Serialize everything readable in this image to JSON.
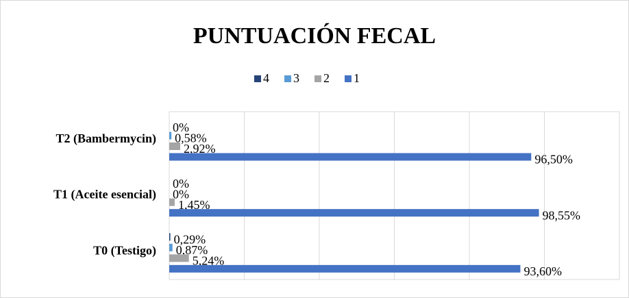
{
  "chart_data": {
    "type": "hbar",
    "title": "PUNTUACIÓN FECAL",
    "categories": [
      "T0 (Testigo)",
      "T1 (Aceite esencial)",
      "T2 (Bambermycin)"
    ],
    "series": [
      {
        "name": "4",
        "color": "#264478",
        "values": [
          0.29,
          0,
          0
        ],
        "value_labels": [
          "0,29%",
          "0%",
          "0%"
        ]
      },
      {
        "name": "3",
        "color": "#5b9bd5",
        "values": [
          0.87,
          0,
          0.58
        ],
        "value_labels": [
          "0,87%",
          "0%",
          "0,58%"
        ]
      },
      {
        "name": "2",
        "color": "#a5a5a5",
        "values": [
          5.24,
          1.45,
          2.92
        ],
        "value_labels": [
          "5,24%",
          "1,45%",
          "2,92%"
        ]
      },
      {
        "name": "1",
        "color": "#4472c4",
        "values": [
          93.6,
          98.55,
          96.5
        ],
        "value_labels": [
          "93,60%",
          "98,55%",
          "96,50%"
        ]
      }
    ],
    "xlim": [
      0,
      120
    ],
    "xticks": [
      0,
      20,
      40,
      60,
      80,
      100,
      120
    ],
    "grid": true,
    "legend": "top"
  }
}
